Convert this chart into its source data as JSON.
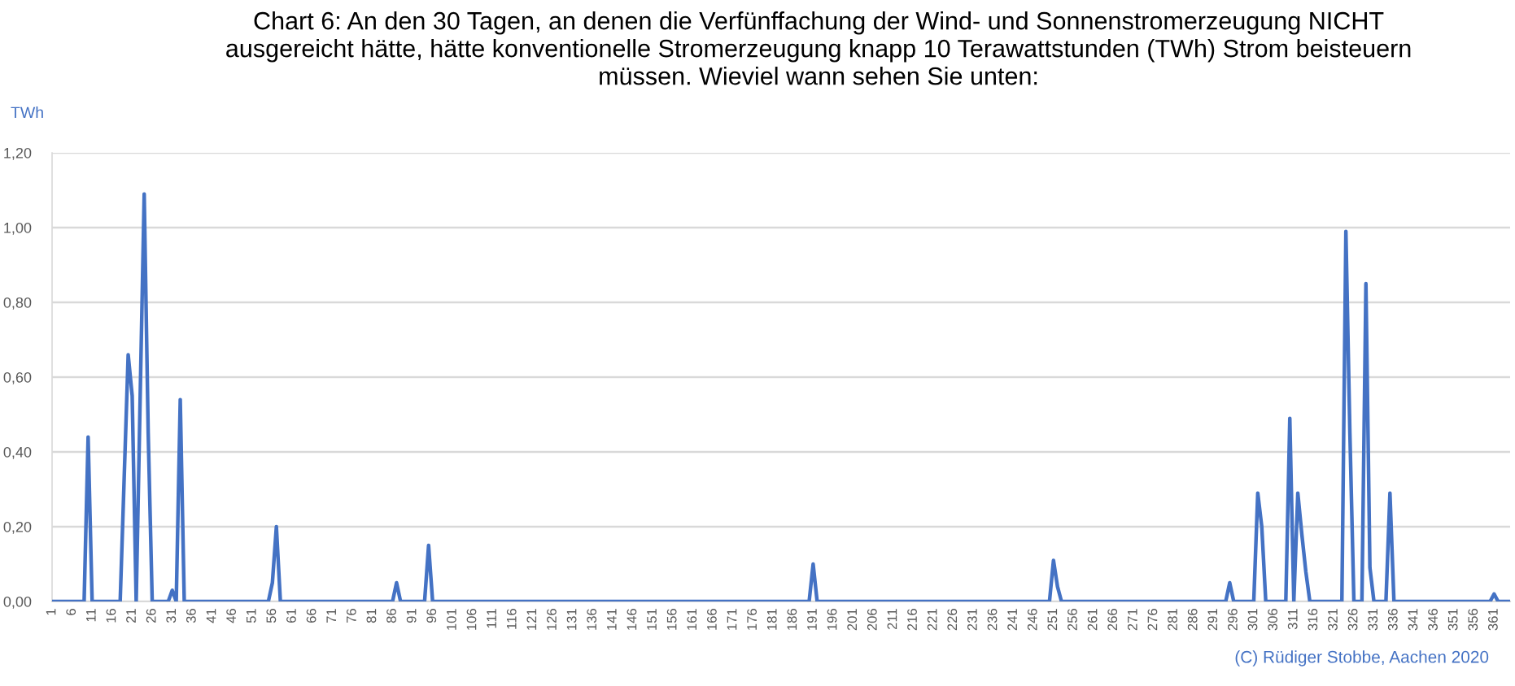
{
  "chart_data": {
    "type": "line",
    "title": "Chart 6: An den 30 Tagen, an denen die Verfünffachung der Wind- und Sonnenstromerzeugung NICHT\nausgereicht hätte, hätte konventionelle Stromerzeugung knapp 10 Terawattstunden (TWh) Strom beisteuern\nmüssen. Wieviel wann sehen Sie unten:",
    "ylabel": "TWh",
    "annotations": [
      "(C) Rüdiger Stobbe, Aachen 2020"
    ],
    "x": [
      1,
      9,
      10,
      11,
      18,
      19,
      20,
      21,
      22,
      23,
      24,
      25,
      26,
      30,
      31,
      32,
      33,
      34,
      55,
      56,
      57,
      58,
      86,
      87,
      88,
      94,
      95,
      96,
      190,
      191,
      192,
      250,
      251,
      252,
      253,
      294,
      295,
      296,
      301,
      302,
      303,
      304,
      309,
      310,
      311,
      312,
      313,
      314,
      315,
      323,
      324,
      325,
      326,
      328,
      329,
      330,
      331,
      334,
      335,
      336,
      360,
      361,
      362,
      365
    ],
    "series": [
      {
        "color": "#4472c4",
        "values": [
          0,
          0,
          0.44,
          0,
          0,
          0.33,
          0.66,
          0.55,
          0,
          0.55,
          1.09,
          0.45,
          0,
          0,
          0.03,
          0,
          0.54,
          0,
          0,
          0.05,
          0.2,
          0,
          0,
          0.05,
          0,
          0,
          0.15,
          0,
          0,
          0.1,
          0,
          0,
          0.11,
          0.04,
          0,
          0,
          0.05,
          0,
          0,
          0.29,
          0.2,
          0,
          0,
          0.49,
          0,
          0.29,
          0.18,
          0.08,
          0,
          0,
          0.99,
          0.45,
          0,
          0,
          0.85,
          0.09,
          0,
          0,
          0.29,
          0,
          0,
          0.02,
          0,
          0
        ]
      }
    ],
    "xlim": [
      1,
      365
    ],
    "xticks": [
      1,
      6,
      11,
      16,
      21,
      26,
      31,
      36,
      41,
      46,
      51,
      56,
      61,
      66,
      71,
      76,
      81,
      86,
      91,
      96,
      101,
      106,
      111,
      116,
      121,
      126,
      131,
      136,
      141,
      146,
      151,
      156,
      161,
      166,
      171,
      176,
      181,
      186,
      191,
      196,
      201,
      206,
      211,
      216,
      221,
      226,
      231,
      236,
      241,
      246,
      251,
      256,
      261,
      266,
      271,
      276,
      281,
      286,
      291,
      296,
      301,
      306,
      311,
      316,
      321,
      326,
      331,
      336,
      341,
      346,
      351,
      356,
      361
    ],
    "ylim": [
      0,
      1.2
    ],
    "yticks": [
      {
        "value": 0,
        "label": "0,00"
      },
      {
        "value": 0.2,
        "label": "0,20"
      },
      {
        "value": 0.4,
        "label": "0,40"
      },
      {
        "value": 0.6,
        "label": "0,60"
      },
      {
        "value": 0.8,
        "label": "0,80"
      },
      {
        "value": 1.0,
        "label": "1,00"
      },
      {
        "value": 1.2,
        "label": "1,20"
      }
    ],
    "grid": "y",
    "marker": "none",
    "line_style": "solid"
  }
}
